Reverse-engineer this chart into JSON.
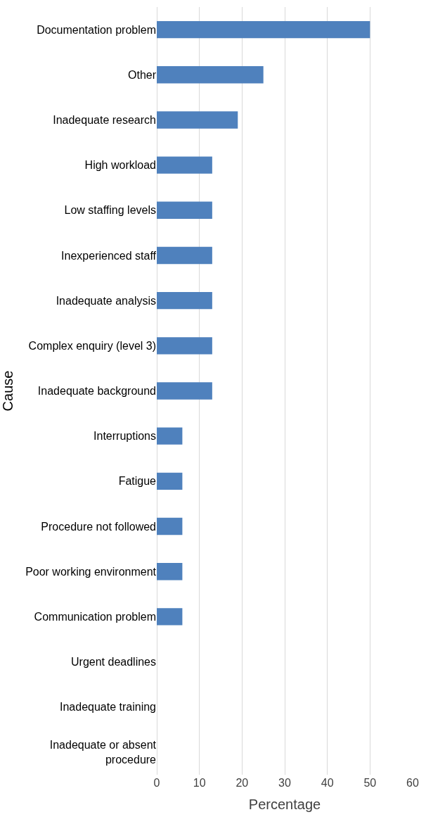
{
  "chart_data": {
    "type": "bar",
    "orientation": "horizontal",
    "xlabel": "Percentage",
    "ylabel": "Cause",
    "categories": [
      "Documentation problem",
      "Other",
      "Inadequate research",
      "High workload",
      "Low staffing levels",
      "Inexperienced staff",
      "Inadequate analysis",
      "Complex enquiry (level 3)",
      "Inadequate background",
      "Interruptions",
      "Fatigue",
      "Procedure not followed",
      "Poor working environment",
      "Communication problem",
      "Urgent deadlines",
      "Inadequate training",
      "Inadequate or absent procedure"
    ],
    "values": [
      50,
      25,
      19,
      13,
      13,
      13,
      13,
      13,
      13,
      6,
      6,
      6,
      6,
      6,
      0,
      0,
      0
    ],
    "color": "#4f81bd",
    "xlim": [
      0,
      60
    ],
    "xticks": [
      0,
      10,
      20,
      30,
      40,
      50,
      60
    ],
    "grid": "x",
    "legend": false
  }
}
